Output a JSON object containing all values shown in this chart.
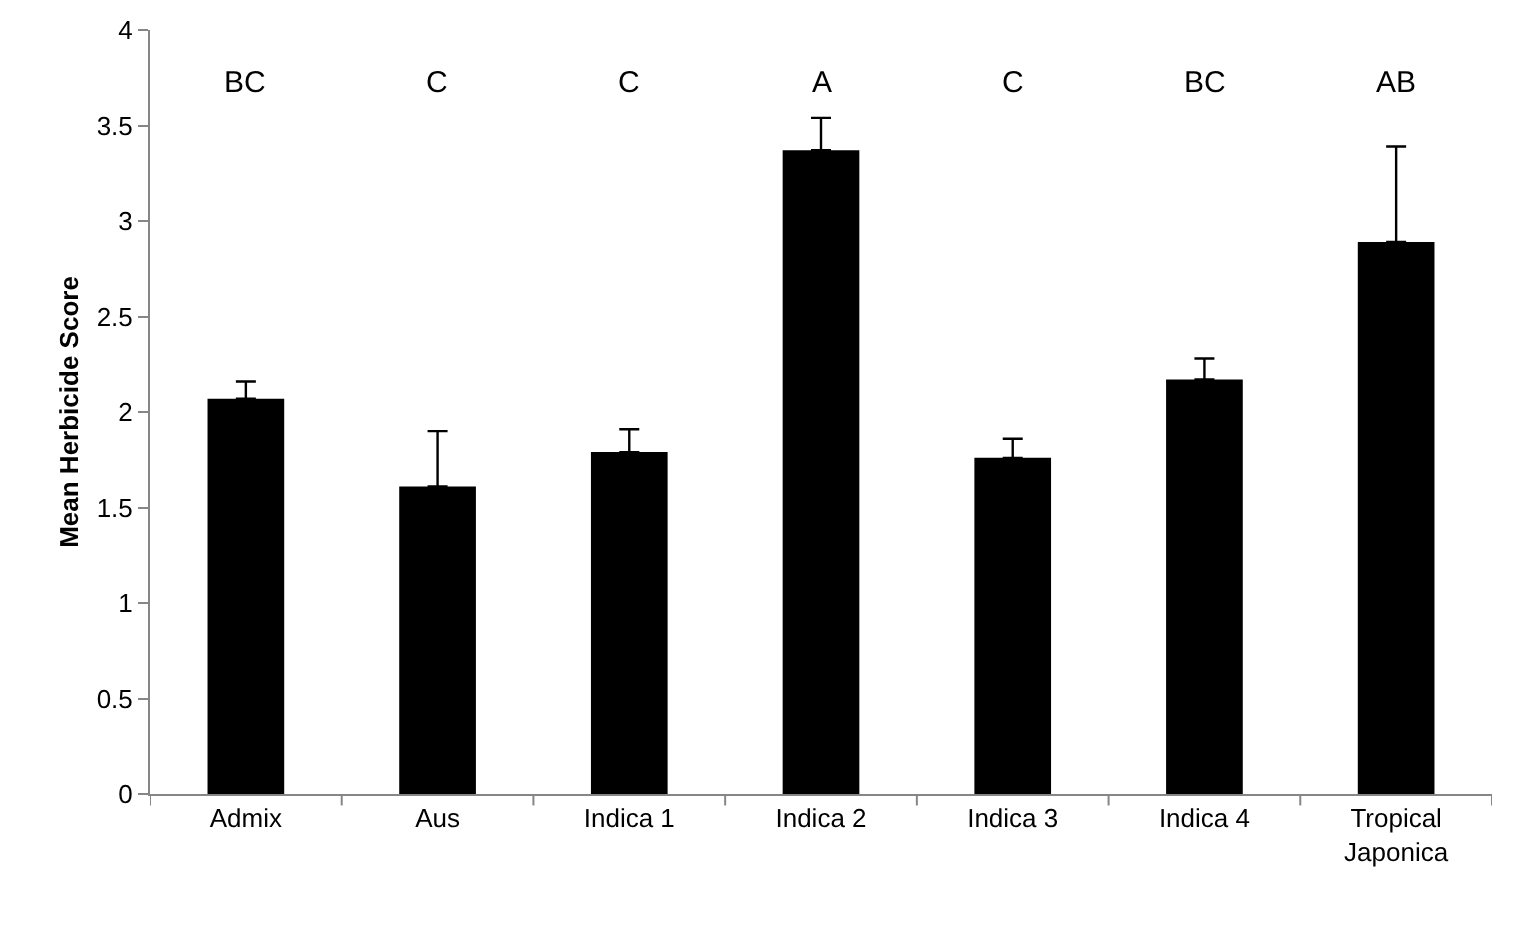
{
  "chart_data": {
    "type": "bar",
    "ylabel": "Mean Herbicide Score",
    "categories": [
      "Admix",
      "Aus",
      "Indica 1",
      "Indica 2",
      "Indica 3",
      "Indica 4",
      "Tropical Japonica"
    ],
    "values": [
      2.07,
      1.61,
      1.79,
      3.37,
      1.76,
      2.17,
      2.89
    ],
    "errors": [
      [
        2.07,
        2.16
      ],
      [
        1.61,
        1.9
      ],
      [
        1.79,
        1.91
      ],
      [
        3.37,
        3.54
      ],
      [
        1.76,
        1.86
      ],
      [
        2.17,
        2.28
      ],
      [
        2.89,
        3.39
      ]
    ],
    "color": "#000000",
    "ylim": [
      0,
      4
    ],
    "yticks": [
      0,
      0.5,
      1,
      1.5,
      2,
      2.5,
      3,
      3.5,
      4
    ],
    "grid": false,
    "annotations": [
      "BC",
      "C",
      "C",
      "A",
      "C",
      "BC",
      "AB"
    ]
  }
}
